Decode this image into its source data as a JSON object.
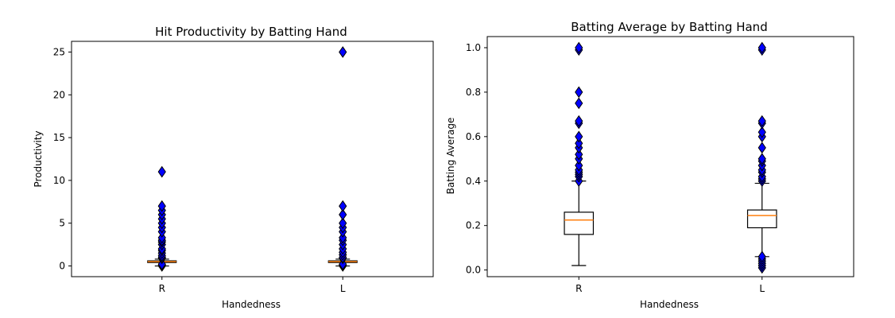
{
  "chart_data": [
    {
      "type": "box",
      "title": "Hit Productivity by Batting Hand",
      "xlabel": "Handedness",
      "ylabel": "Productivity",
      "ylim": [
        -1.25,
        26.25
      ],
      "yticks": [
        0,
        5,
        10,
        15,
        20,
        25
      ],
      "categories": [
        "R",
        "L"
      ],
      "grid": false,
      "colors": {
        "box": "#000000",
        "median": "#ff7f0e",
        "flier_fill": "#0000ff",
        "flier_edge": "#000000"
      },
      "boxes": [
        {
          "name": "R",
          "whisker_low": 0.0,
          "q1": 0.4,
          "median": 0.5,
          "q3": 0.6,
          "whisker_high": 0.8,
          "fliers": [
            0,
            0.1,
            0.2,
            0.9,
            1.0,
            1.2,
            1.5,
            1.8,
            2.0,
            2.5,
            2.8,
            3.0,
            3.3,
            4.0,
            4.5,
            5.0,
            5.5,
            6.0,
            6.5,
            7.0,
            11.0
          ]
        },
        {
          "name": "L",
          "whisker_low": 0.0,
          "q1": 0.4,
          "median": 0.5,
          "q3": 0.6,
          "whisker_high": 0.8,
          "fliers": [
            0,
            0.1,
            0.2,
            0.9,
            1.0,
            1.3,
            1.6,
            2.0,
            2.5,
            3.0,
            3.3,
            4.0,
            4.5,
            5.0,
            6.0,
            7.0,
            25.0
          ]
        }
      ]
    },
    {
      "type": "box",
      "title": "Batting Average by Batting Hand",
      "xlabel": "Handedness",
      "ylabel": "Batting Average",
      "ylim": [
        -0.03,
        1.05
      ],
      "yticks": [
        0.0,
        0.2,
        0.4,
        0.6,
        0.8,
        1.0
      ],
      "categories": [
        "R",
        "L"
      ],
      "grid": false,
      "colors": {
        "box": "#000000",
        "median": "#ff7f0e",
        "flier_fill": "#0000ff",
        "flier_edge": "#000000"
      },
      "boxes": [
        {
          "name": "R",
          "whisker_low": 0.02,
          "q1": 0.16,
          "median": 0.225,
          "q3": 0.26,
          "whisker_high": 0.4,
          "fliers": [
            0.4,
            0.42,
            0.43,
            0.44,
            0.45,
            0.47,
            0.5,
            0.52,
            0.55,
            0.57,
            0.6,
            0.66,
            0.67,
            0.75,
            0.8,
            0.99,
            1.0
          ]
        },
        {
          "name": "L",
          "whisker_low": 0.06,
          "q1": 0.19,
          "median": 0.245,
          "q3": 0.27,
          "whisker_high": 0.39,
          "fliers": [
            0.01,
            0.02,
            0.03,
            0.04,
            0.05,
            0.06,
            0.4,
            0.41,
            0.42,
            0.44,
            0.45,
            0.47,
            0.49,
            0.5,
            0.55,
            0.6,
            0.62,
            0.66,
            0.67,
            0.99,
            1.0
          ]
        }
      ]
    }
  ]
}
